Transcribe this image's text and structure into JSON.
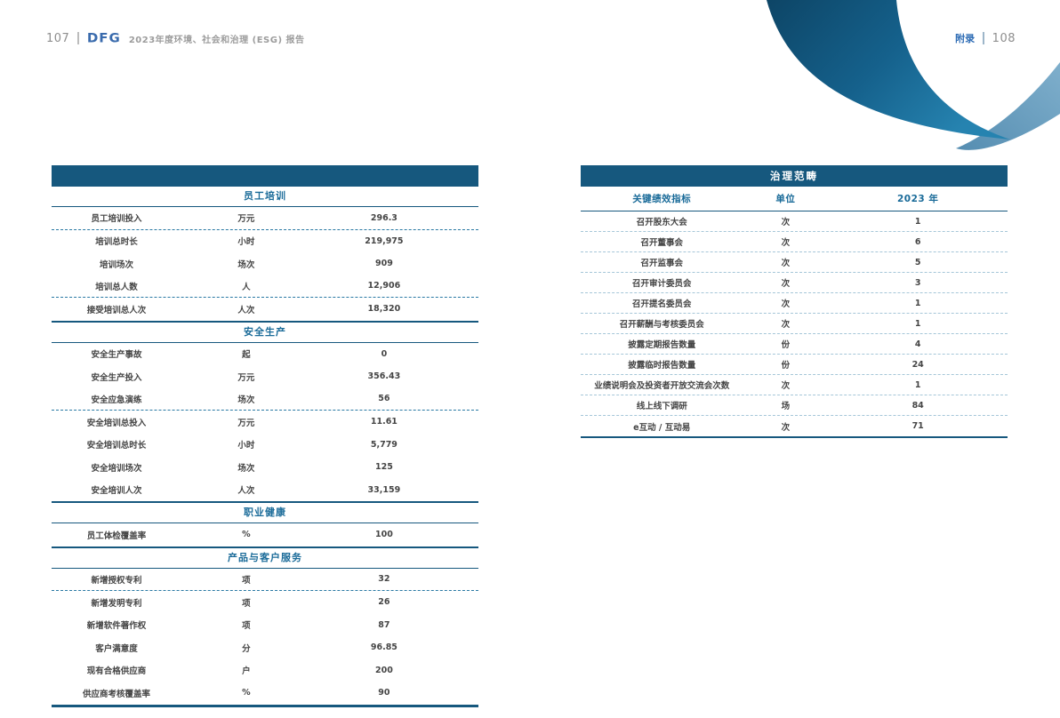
{
  "header": {
    "left_page_number": "107",
    "logo_text": "DFG",
    "report_title": "2023年度环境、社会和治理 (ESG) 报告",
    "appendix_label": "附录",
    "right_page_number": "108"
  },
  "left_table": {
    "header_bar": "",
    "sections": [
      {
        "title": "员工培训",
        "rows": [
          {
            "label": "员工培训投入",
            "unit": "万元",
            "value": "296.3",
            "sep": "dashed"
          },
          {
            "label": "培训总时长",
            "unit": "小时",
            "value": "219,975",
            "sep": "none"
          },
          {
            "label": "培训场次",
            "unit": "场次",
            "value": "909",
            "sep": "none"
          },
          {
            "label": "培训总人数",
            "unit": "人",
            "value": "12,906",
            "sep": "dashed"
          },
          {
            "label": "接受培训总人次",
            "unit": "人次",
            "value": "18,320",
            "sep": "none"
          }
        ]
      },
      {
        "title": "安全生产",
        "rows": [
          {
            "label": "安全生产事故",
            "unit": "起",
            "value": "0",
            "sep": "none"
          },
          {
            "label": "安全生产投入",
            "unit": "万元",
            "value": "356.43",
            "sep": "none"
          },
          {
            "label": "安全应急演练",
            "unit": "场次",
            "value": "56",
            "sep": "dashed"
          },
          {
            "label": "安全培训总投入",
            "unit": "万元",
            "value": "11.61",
            "sep": "none"
          },
          {
            "label": "安全培训总时长",
            "unit": "小时",
            "value": "5,779",
            "sep": "none"
          },
          {
            "label": "安全培训场次",
            "unit": "场次",
            "value": "125",
            "sep": "none"
          },
          {
            "label": "安全培训人次",
            "unit": "人次",
            "value": "33,159",
            "sep": "none"
          }
        ]
      },
      {
        "title": "职业健康",
        "rows": [
          {
            "label": "员工体检覆盖率",
            "unit": "%",
            "value": "100",
            "sep": "none"
          }
        ]
      },
      {
        "title": "产品与客户服务",
        "rows": [
          {
            "label": "新增授权专利",
            "unit": "项",
            "value": "32",
            "sep": "dashed"
          },
          {
            "label": "新增发明专利",
            "unit": "项",
            "value": "26",
            "sep": "none"
          },
          {
            "label": "新增软件著作权",
            "unit": "项",
            "value": "87",
            "sep": "none"
          },
          {
            "label": "客户满意度",
            "unit": "分",
            "value": "96.85",
            "sep": "none"
          },
          {
            "label": "现有合格供应商",
            "unit": "户",
            "value": "200",
            "sep": "none"
          },
          {
            "label": "供应商考核覆盖率",
            "unit": "%",
            "value": "90",
            "sep": "none"
          }
        ]
      }
    ]
  },
  "right_table": {
    "header_bar": "治理范畴",
    "columns": [
      "关键绩效指标",
      "单位",
      "2023 年"
    ],
    "rows": [
      {
        "label": "召开股东大会",
        "unit": "次",
        "value": "1",
        "sep": "dashed"
      },
      {
        "label": "召开董事会",
        "unit": "次",
        "value": "6",
        "sep": "dashed"
      },
      {
        "label": "召开监事会",
        "unit": "次",
        "value": "5",
        "sep": "dashed"
      },
      {
        "label": "召开审计委员会",
        "unit": "次",
        "value": "3",
        "sep": "dashed"
      },
      {
        "label": "召开提名委员会",
        "unit": "次",
        "value": "1",
        "sep": "dashed"
      },
      {
        "label": "召开薪酬与考核委员会",
        "unit": "次",
        "value": "1",
        "sep": "dashed"
      },
      {
        "label": "披露定期报告数量",
        "unit": "份",
        "value": "4",
        "sep": "dashed"
      },
      {
        "label": "披露临时报告数量",
        "unit": "份",
        "value": "24",
        "sep": "dashed"
      },
      {
        "label": "业绩说明会及投资者开放交流会次数",
        "unit": "次",
        "value": "1",
        "sep": "dashed"
      },
      {
        "label": "线上线下调研",
        "unit": "场",
        "value": "84",
        "sep": "dashed"
      },
      {
        "label": "e互动 / 互动易",
        "unit": "次",
        "value": "71",
        "sep": "none"
      }
    ]
  },
  "colors": {
    "table_header_bg": "#16587e",
    "section_title_text": "#1a6b99",
    "body_text": "#454545",
    "dashed_line": "#2878a3",
    "header_gray_text": "#9c9c9c",
    "logo_blue": "#3a6bad",
    "appendix_blue": "#2f6db5",
    "swoosh_dark": "#0d4566",
    "swoosh_mid": "#1b6f9d",
    "swoosh_light": "#6096ba"
  }
}
